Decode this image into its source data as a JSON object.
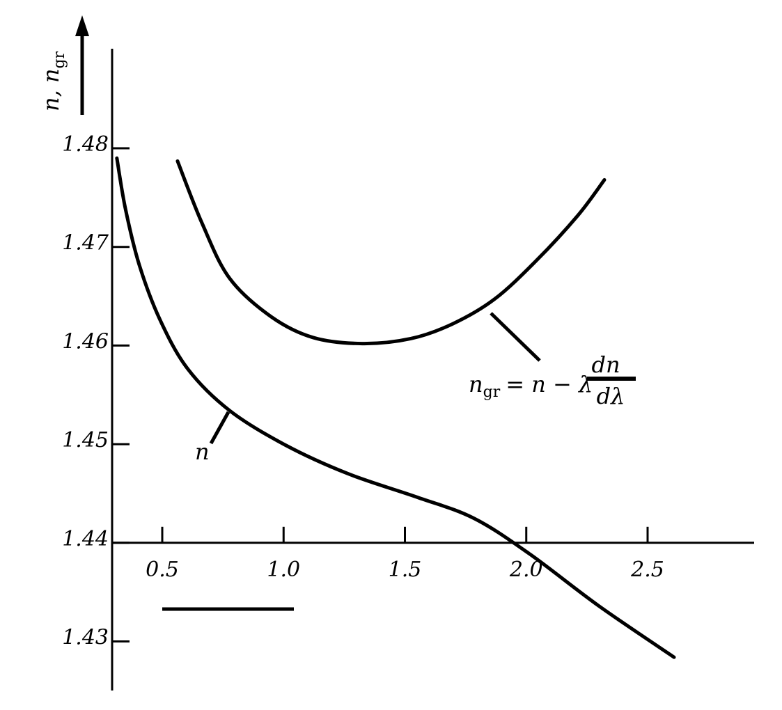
{
  "chart_data": {
    "type": "line",
    "title": "",
    "xlabel": "",
    "ylabel": "n, n_gr",
    "ylabel_parts": {
      "main": "n, n",
      "sub": "gr"
    },
    "xlim": [
      0.3,
      2.9
    ],
    "ylim": [
      1.425,
      1.49
    ],
    "x_ticks": [
      "0.5",
      "1.0",
      "1.5",
      "2.0",
      "2.5"
    ],
    "y_ticks": [
      "1.48",
      "1.47",
      "1.46",
      "1.45",
      "1.44",
      "1.43"
    ],
    "x_axis_crosses_y_at": 1.44,
    "grid": false,
    "series": [
      {
        "name": "n",
        "x": [
          0.313,
          0.348,
          0.405,
          0.491,
          0.606,
          0.778,
          1.008,
          1.266,
          1.553,
          1.783,
          2.012,
          2.299,
          2.609
        ],
        "y": [
          1.479,
          1.4739,
          1.4682,
          1.4626,
          1.4576,
          1.4534,
          1.4499,
          1.447,
          1.4446,
          1.4425,
          1.4389,
          1.4336,
          1.4284
        ]
      },
      {
        "name": "n_gr = n − λ dn/dλ",
        "x": [
          0.563,
          0.664,
          0.778,
          0.95,
          1.123,
          1.324,
          1.524,
          1.697,
          1.869,
          2.041,
          2.213,
          2.322
        ],
        "y": [
          1.4787,
          1.4724,
          1.4668,
          1.4629,
          1.4608,
          1.4602,
          1.4607,
          1.4622,
          1.4647,
          1.4686,
          1.4732,
          1.4768
        ]
      }
    ],
    "annotations": {
      "n_label": "n",
      "ngr_formula": {
        "lhs": "n",
        "lhs_sub": "gr",
        "eq": "= n − λ",
        "num": "dn",
        "den": "dλ"
      }
    }
  }
}
